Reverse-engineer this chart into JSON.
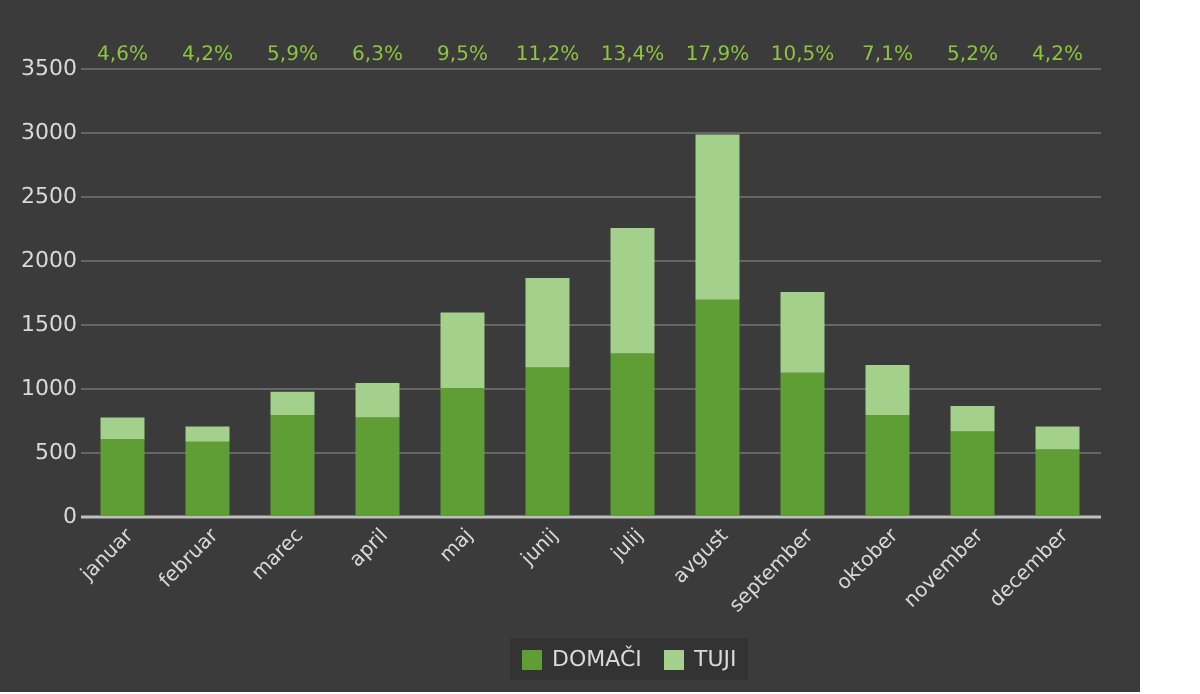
{
  "chart_data": {
    "type": "bar",
    "stacked": true,
    "categories": [
      "januar",
      "februar",
      "marec",
      "april",
      "maj",
      "junij",
      "julij",
      "avgust",
      "september",
      "oktober",
      "november",
      "december"
    ],
    "series": [
      {
        "name": "DOMAČI",
        "color": "#5e9e34",
        "values": [
          600,
          580,
          790,
          770,
          1000,
          1160,
          1270,
          1690,
          1120,
          790,
          660,
          520
        ]
      },
      {
        "name": "TUJI",
        "color": "#a3d08a",
        "values": [
          170,
          120,
          180,
          270,
          590,
          700,
          980,
          1290,
          630,
          390,
          200,
          180
        ]
      }
    ],
    "ylim": [
      0,
      3500
    ],
    "yticks": [
      0,
      500,
      1000,
      1500,
      2000,
      2500,
      3000,
      3500
    ],
    "grid": "y",
    "legend": "bottom",
    "annotations": [
      "4,6%",
      "4,2%",
      "5,9%",
      "6,3%",
      "9,5%",
      "11,2%",
      "13,4%",
      "17,9%",
      "10,5%",
      "7,1%",
      "5,2%",
      "4,2%"
    ]
  }
}
